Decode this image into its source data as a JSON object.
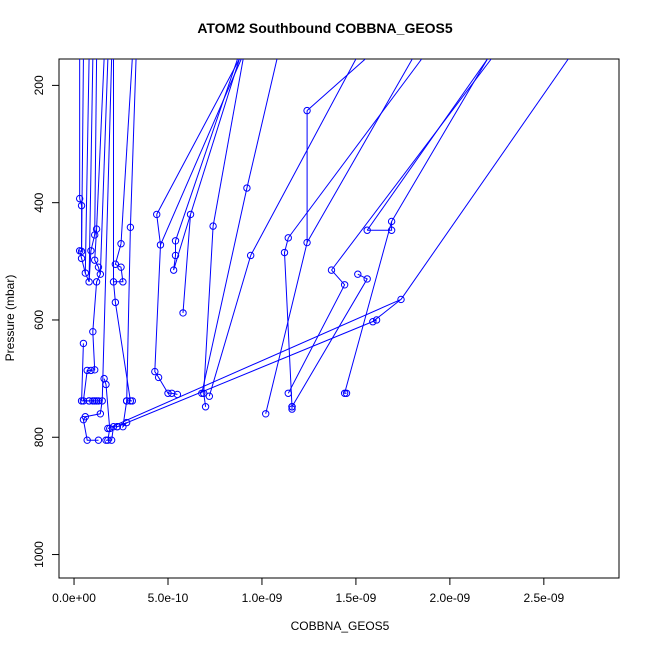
{
  "chart_data": {
    "type": "line",
    "title": "ATOM2 Southbound COBBNA_GEOS5",
    "xlabel": "COBBNA_GEOS5",
    "ylabel": "Pressure (mbar)",
    "xlim": [
      -8e-11,
      2.9e-09
    ],
    "ylim": [
      1040,
      155
    ],
    "y_axis_reversed": true,
    "x_ticks": [
      0,
      5e-10,
      1e-09,
      1.5e-09,
      2e-09,
      2.5e-09
    ],
    "x_tick_labels": [
      "0.0e+00",
      "5.0e-10",
      "1.0e-09",
      "1.5e-09",
      "2.0e-09",
      "2.5e-09"
    ],
    "y_ticks": [
      200,
      400,
      600,
      800,
      1000
    ],
    "y_tick_labels": [
      "200",
      "400",
      "600",
      "800",
      "1000"
    ],
    "grid": false,
    "legend": "none",
    "series_color": "#0000ff",
    "marker": "open-circle",
    "series": [
      {
        "points": [
          [
            3e-11,
            393
          ],
          [
            4e-11,
            405
          ],
          [
            4e-11,
            483
          ],
          [
            3e-11,
            482
          ],
          [
            4e-11,
            495
          ],
          [
            6e-11,
            520
          ],
          [
            8e-11,
            535
          ],
          [
            9e-11,
            482
          ],
          [
            1.1e-10,
            455
          ],
          [
            1.2e-10,
            445
          ],
          [
            1.1e-10,
            498
          ],
          [
            1.3e-10,
            510
          ],
          [
            1.4e-10,
            522
          ],
          [
            1.2e-10,
            535
          ],
          [
            1e-10,
            620
          ],
          [
            1.1e-10,
            685
          ],
          [
            9e-11,
            686
          ],
          [
            7e-11,
            686
          ],
          [
            5e-11,
            738
          ],
          [
            8e-11,
            738
          ],
          [
            1e-10,
            738
          ],
          [
            1.3e-10,
            738
          ],
          [
            1.5e-10,
            738
          ],
          [
            1.4e-10,
            760
          ],
          [
            6e-11,
            765
          ],
          [
            5e-11,
            770
          ],
          [
            7e-11,
            805
          ],
          [
            1.3e-10,
            805
          ]
        ]
      },
      {
        "points": [
          [
            5e-11,
            640
          ],
          [
            4e-11,
            738
          ],
          [
            8e-11,
            738
          ],
          [
            1.1e-10,
            738
          ],
          [
            1.2e-10,
            738
          ]
        ]
      },
      {
        "points": [
          [
            1.6e-10,
            700
          ],
          [
            1.7e-10,
            710
          ],
          [
            1.9e-10,
            785
          ],
          [
            1.8e-10,
            805
          ],
          [
            1.7e-10,
            805
          ],
          [
            2e-10,
            805
          ],
          [
            2.1e-10,
            782
          ],
          [
            2.3e-10,
            782
          ],
          [
            2.8e-10,
            775
          ],
          [
            2.6e-10,
            782
          ],
          [
            2.8e-10,
            738
          ],
          [
            3.1e-10,
            738
          ]
        ]
      },
      {
        "points": [
          [
            2.5e-10,
            470
          ],
          [
            2.2e-10,
            505
          ],
          [
            2.5e-10,
            510
          ],
          [
            2.6e-10,
            535
          ],
          [
            2.1e-10,
            535
          ],
          [
            2.2e-10,
            570
          ],
          [
            3e-10,
            738
          ]
        ]
      },
      {
        "points": [
          [
            3e-10,
            442
          ],
          [
            2.8e-10,
            738
          ]
        ]
      },
      {
        "points": [
          [
            4.4e-10,
            420
          ],
          [
            4.6e-10,
            472
          ],
          [
            4.3e-10,
            688
          ],
          [
            4.5e-10,
            698
          ],
          [
            5e-10,
            725
          ],
          [
            5.2e-10,
            725
          ],
          [
            5.5e-10,
            727
          ]
        ]
      },
      {
        "points": [
          [
            5.4e-10,
            465
          ],
          [
            5.4e-10,
            490
          ],
          [
            5.3e-10,
            515
          ],
          [
            6.2e-10,
            420
          ],
          [
            5.8e-10,
            588
          ]
        ]
      },
      {
        "points": [
          [
            7.4e-10,
            440
          ],
          [
            6.9e-10,
            725
          ],
          [
            7e-10,
            748
          ]
        ]
      },
      {
        "points": [
          [
            9.2e-10,
            375
          ],
          [
            6.8e-10,
            725
          ]
        ]
      },
      {
        "points": [
          [
            9.4e-10,
            490
          ],
          [
            7.2e-10,
            730
          ]
        ]
      },
      {
        "points": [
          [
            1.14e-09,
            460
          ],
          [
            1.12e-09,
            485
          ],
          [
            1.16e-09,
            748
          ],
          [
            1.16e-09,
            752
          ]
        ]
      },
      {
        "points": [
          [
            1.24e-09,
            243
          ],
          [
            1.24e-09,
            468
          ],
          [
            1.02e-09,
            760
          ]
        ]
      },
      {
        "points": [
          [
            1.37e-09,
            515
          ],
          [
            1.44e-09,
            540
          ],
          [
            1.14e-09,
            725
          ]
        ]
      },
      {
        "points": [
          [
            1.51e-09,
            522
          ],
          [
            1.56e-09,
            530
          ],
          [
            1.16e-09,
            748
          ]
        ]
      },
      {
        "points": [
          [
            1.56e-09,
            447
          ],
          [
            1.69e-09,
            447
          ],
          [
            1.69e-09,
            432
          ],
          [
            1.44e-09,
            725
          ],
          [
            1.45e-09,
            725
          ]
        ]
      },
      {
        "points": [
          [
            1.59e-09,
            603
          ],
          [
            1.74e-09,
            565
          ],
          [
            1.8e-10,
            785
          ]
        ]
      },
      {
        "points": [
          [
            2.3e-10,
            782
          ],
          [
            1.61e-09,
            600
          ]
        ]
      }
    ],
    "exit_lines": [
      {
        "from": [
          3e-11,
          393
        ],
        "to": [
          3e-11,
          155
        ]
      },
      {
        "from": [
          4e-11,
          483
        ],
        "to": [
          5e-11,
          155
        ]
      },
      {
        "from": [
          6e-11,
          520
        ],
        "to": [
          8e-11,
          155
        ]
      },
      {
        "from": [
          8e-11,
          535
        ],
        "to": [
          1e-10,
          155
        ]
      },
      {
        "from": [
          1.1e-10,
          455
        ],
        "to": [
          1.2e-10,
          155
        ]
      },
      {
        "from": [
          1.2e-10,
          445
        ],
        "to": [
          1.6e-10,
          155
        ]
      },
      {
        "from": [
          1.4e-10,
          522
        ],
        "to": [
          1.8e-10,
          155
        ]
      },
      {
        "from": [
          1.5e-10,
          738
        ],
        "to": [
          2e-10,
          155
        ]
      },
      {
        "from": [
          2.1e-10,
          535
        ],
        "to": [
          2.1e-10,
          155
        ]
      },
      {
        "from": [
          2.5e-10,
          470
        ],
        "to": [
          3.1e-10,
          155
        ]
      },
      {
        "from": [
          3e-10,
          442
        ],
        "to": [
          3.3e-10,
          155
        ]
      },
      {
        "from": [
          4.4e-10,
          420
        ],
        "to": [
          8.8e-10,
          155
        ]
      },
      {
        "from": [
          4.6e-10,
          472
        ],
        "to": [
          8.9e-10,
          155
        ]
      },
      {
        "from": [
          5.4e-10,
          465
        ],
        "to": [
          8.7e-10,
          155
        ]
      },
      {
        "from": [
          6.2e-10,
          420
        ],
        "to": [
          8.8e-10,
          155
        ]
      },
      {
        "from": [
          7.4e-10,
          440
        ],
        "to": [
          9e-10,
          155
        ]
      },
      {
        "from": [
          9.2e-10,
          375
        ],
        "to": [
          1.08e-09,
          155
        ]
      },
      {
        "from": [
          9.4e-10,
          490
        ],
        "to": [
          1.5e-09,
          155
        ]
      },
      {
        "from": [
          1.14e-09,
          460
        ],
        "to": [
          1.85e-09,
          155
        ]
      },
      {
        "from": [
          1.24e-09,
          243
        ],
        "to": [
          1.55e-09,
          155
        ]
      },
      {
        "from": [
          1.24e-09,
          468
        ],
        "to": [
          1.8e-09,
          155
        ]
      },
      {
        "from": [
          1.37e-09,
          515
        ],
        "to": [
          2.22e-09,
          155
        ]
      },
      {
        "from": [
          1.56e-09,
          447
        ],
        "to": [
          2.2e-09,
          155
        ]
      },
      {
        "from": [
          1.69e-09,
          432
        ],
        "to": [
          2.2e-09,
          155
        ]
      },
      {
        "from": [
          1.74e-09,
          565
        ],
        "to": [
          2.63e-09,
          155
        ]
      }
    ]
  }
}
